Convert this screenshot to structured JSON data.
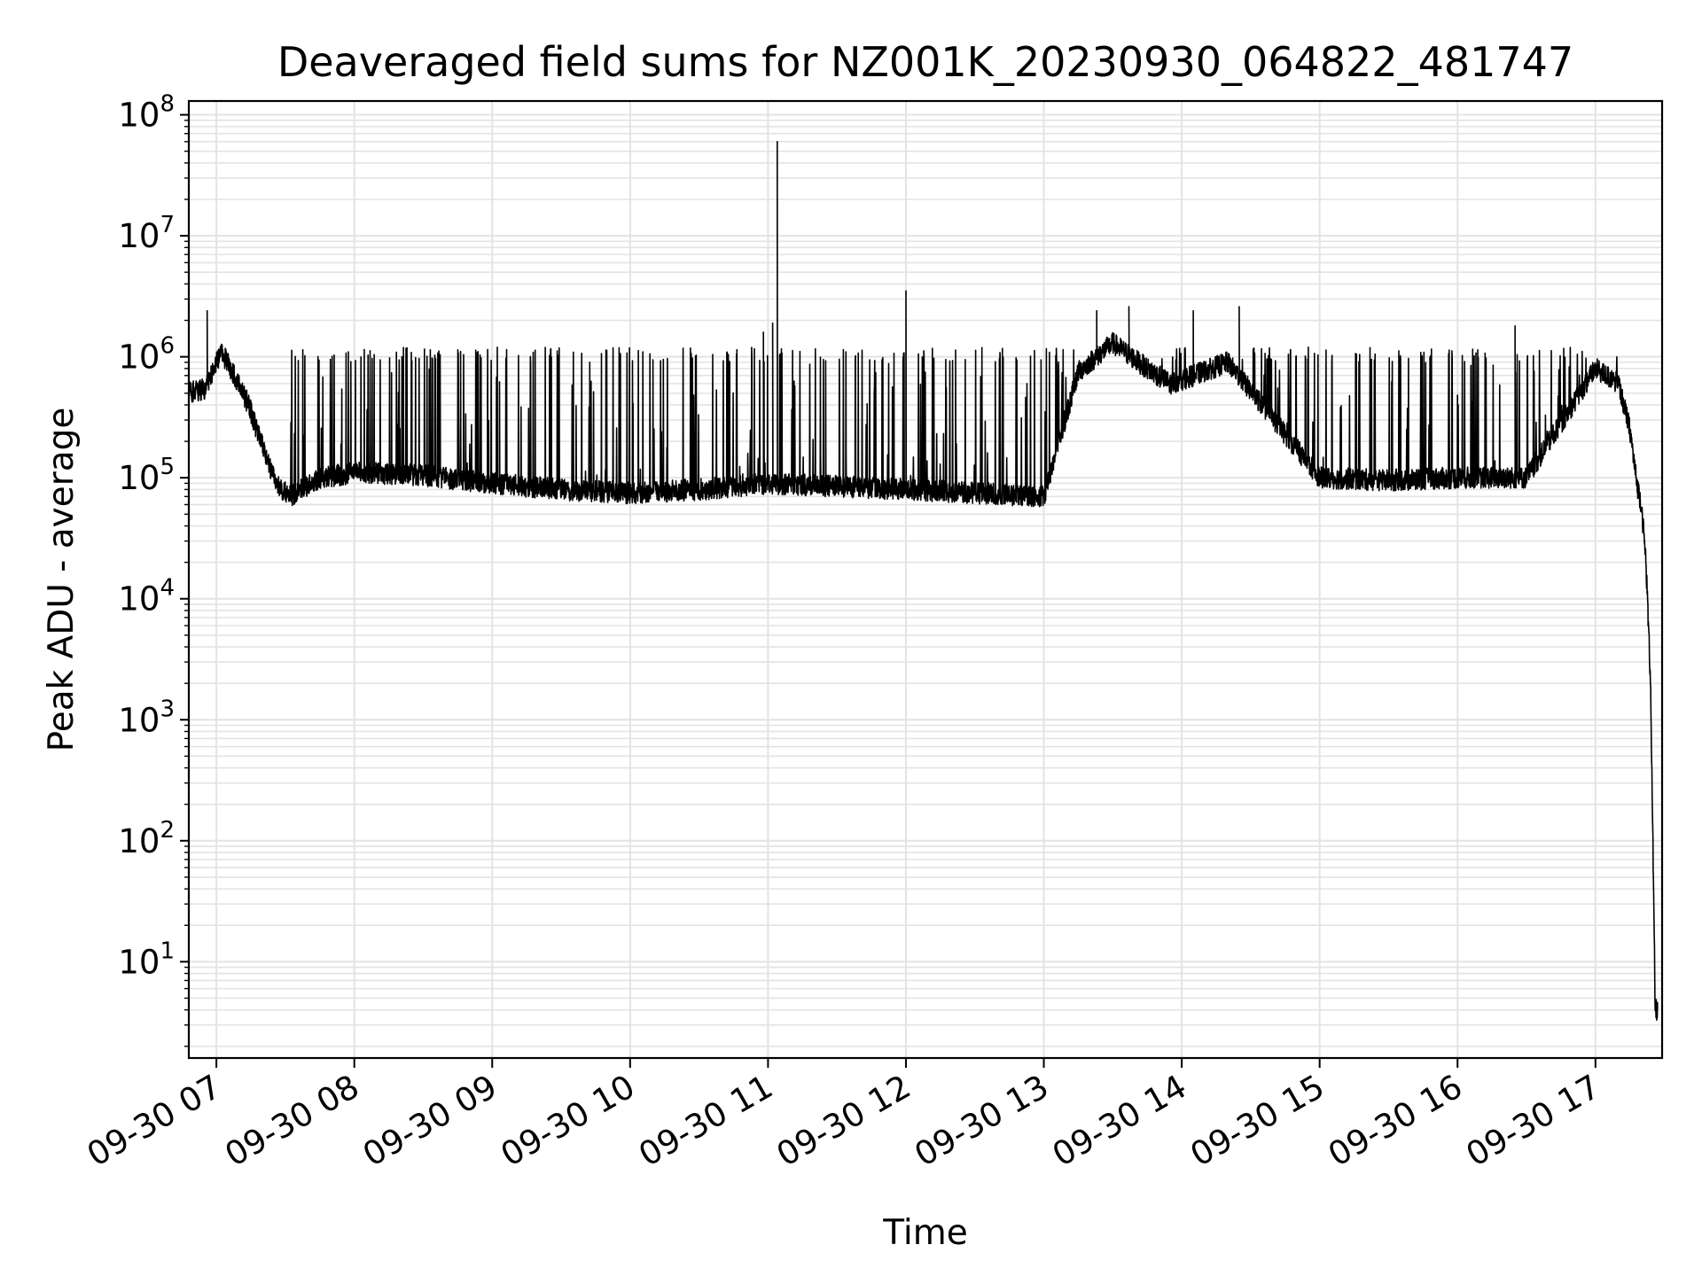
{
  "chart_data": {
    "type": "line",
    "title": "Deaveraged field sums for NZ001K_20230930_064822_481747",
    "xlabel": "Time",
    "ylabel": "Peak ADU - average",
    "y_scale": "log",
    "grid": true,
    "grid_minor": true,
    "line_color": "#000000",
    "grid_color": "#e3e3e3",
    "x_ticks": [
      {
        "time": "2023-09-30 07:00",
        "label": "09-30 07"
      },
      {
        "time": "2023-09-30 08:00",
        "label": "09-30 08"
      },
      {
        "time": "2023-09-30 09:00",
        "label": "09-30 09"
      },
      {
        "time": "2023-09-30 10:00",
        "label": "09-30 10"
      },
      {
        "time": "2023-09-30 11:00",
        "label": "09-30 11"
      },
      {
        "time": "2023-09-30 12:00",
        "label": "09-30 12"
      },
      {
        "time": "2023-09-30 13:00",
        "label": "09-30 13"
      },
      {
        "time": "2023-09-30 14:00",
        "label": "09-30 14"
      },
      {
        "time": "2023-09-30 15:00",
        "label": "09-30 15"
      },
      {
        "time": "2023-09-30 16:00",
        "label": "09-30 16"
      },
      {
        "time": "2023-09-30 17:00",
        "label": "09-30 17"
      }
    ],
    "y_ticks": [
      {
        "value": 10,
        "base": "10",
        "exp": "1"
      },
      {
        "value": 100,
        "base": "10",
        "exp": "2"
      },
      {
        "value": 1000,
        "base": "10",
        "exp": "3"
      },
      {
        "value": 10000,
        "base": "10",
        "exp": "4"
      },
      {
        "value": 100000,
        "base": "10",
        "exp": "5"
      },
      {
        "value": 1000000,
        "base": "10",
        "exp": "6"
      },
      {
        "value": 10000000,
        "base": "10",
        "exp": "7"
      },
      {
        "value": 100000000,
        "base": "10",
        "exp": "8"
      }
    ],
    "xlim": [
      "2023-09-30 06:48",
      "2023-09-30 17:29"
    ],
    "ylim": [
      1.6,
      130000000
    ],
    "series": [
      {
        "x": [
          "2023-09-30 06:48",
          "2023-09-30 06:55",
          "2023-09-30 07:02",
          "2023-09-30 07:08",
          "2023-09-30 07:14",
          "2023-09-30 07:20",
          "2023-09-30 07:26",
          "2023-09-30 07:32",
          "2023-09-30 07:45",
          "2023-09-30 08:00",
          "2023-09-30 08:30",
          "2023-09-30 09:00",
          "2023-09-30 09:30",
          "2023-09-30 10:00",
          "2023-09-30 10:30",
          "2023-09-30 11:00",
          "2023-09-30 11:30",
          "2023-09-30 12:00",
          "2023-09-30 12:30",
          "2023-09-30 13:00",
          "2023-09-30 13:15",
          "2023-09-30 13:30",
          "2023-09-30 13:45",
          "2023-09-30 13:55",
          "2023-09-30 14:05",
          "2023-09-30 14:20",
          "2023-09-30 14:35",
          "2023-09-30 15:00",
          "2023-09-30 15:30",
          "2023-09-30 16:00",
          "2023-09-30 16:30",
          "2023-09-30 17:00",
          "2023-09-30 17:10",
          "2023-09-30 17:15",
          "2023-09-30 17:18",
          "2023-09-30 17:20",
          "2023-09-30 17:22",
          "2023-09-30 17:24",
          "2023-09-30 17:26",
          "2023-09-30 17:27"
        ],
        "y": [
          500000,
          550000,
          1100000,
          700000,
          400000,
          180000,
          90000,
          70000,
          100000,
          110000,
          105000,
          90000,
          80000,
          75000,
          80000,
          90000,
          85000,
          80000,
          75000,
          70000,
          750000,
          1300000,
          800000,
          600000,
          700000,
          900000,
          400000,
          100000,
          95000,
          100000,
          100000,
          800000,
          600000,
          250000,
          90000,
          60000,
          20000,
          2000,
          4,
          4
        ],
        "band_start": "2023-09-30 07:30",
        "band_end": "2023-09-30 17:10",
        "band_upper": 1200000,
        "spikes": [
          {
            "x": "2023-09-30 06:56",
            "y": 2400000
          },
          {
            "x": "2023-09-30 10:58",
            "y": 1600000
          },
          {
            "x": "2023-09-30 11:02",
            "y": 1900000
          },
          {
            "x": "2023-09-30 11:04",
            "y": 60000000
          },
          {
            "x": "2023-09-30 12:00",
            "y": 3500000
          },
          {
            "x": "2023-09-30 13:23",
            "y": 2400000
          },
          {
            "x": "2023-09-30 13:37",
            "y": 2600000
          },
          {
            "x": "2023-09-30 14:05",
            "y": 2400000
          },
          {
            "x": "2023-09-30 14:25",
            "y": 2600000
          },
          {
            "x": "2023-09-30 16:25",
            "y": 1800000
          }
        ]
      }
    ]
  }
}
